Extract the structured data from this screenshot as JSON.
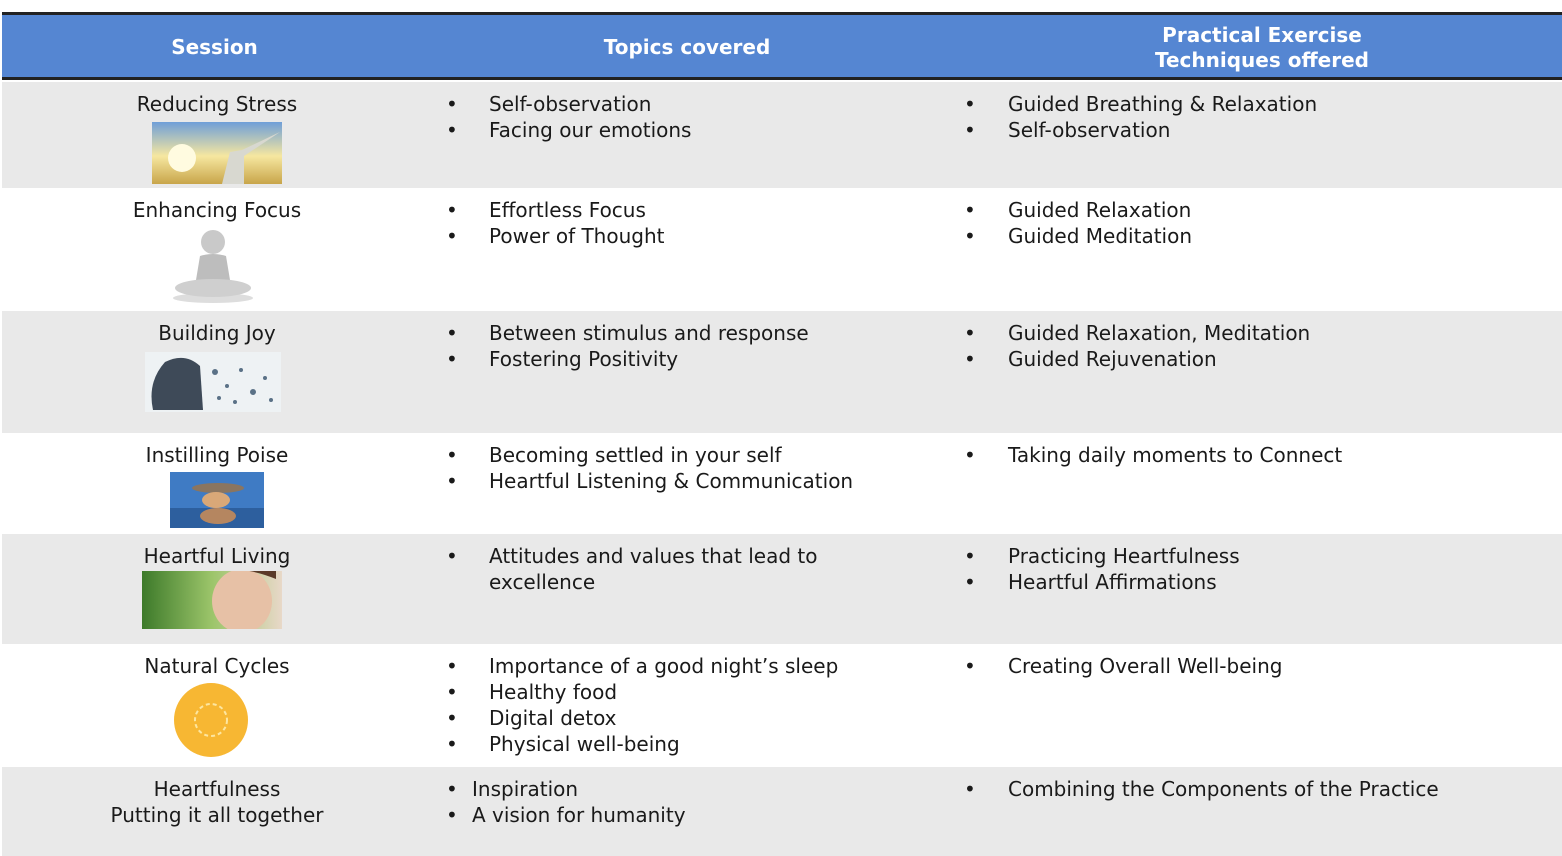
{
  "table": {
    "header": [
      [
        "Session"
      ],
      [
        "Topics covered"
      ],
      [
        "Practical Exercise",
        "Techniques offered"
      ]
    ],
    "rows": [
      {
        "session": [
          "Reducing Stress"
        ],
        "topics": [
          "Self-observation",
          "Facing our emotions"
        ],
        "exercises": [
          "Guided Breathing & Relaxation",
          "Self-observation"
        ]
      },
      {
        "session": [
          "Enhancing Focus"
        ],
        "topics": [
          "Effortless Focus",
          "Power of Thought"
        ],
        "exercises": [
          "Guided Relaxation",
          "Guided Meditation"
        ]
      },
      {
        "session": [
          "Building Joy"
        ],
        "topics": [
          "Between stimulus and response",
          "Fostering Positivity"
        ],
        "exercises": [
          "Guided Relaxation, Meditation",
          "Guided Rejuvenation"
        ]
      },
      {
        "session": [
          "Instilling Poise"
        ],
        "topics": [
          "Becoming settled in your self",
          "Heartful Listening & Communication"
        ],
        "exercises": [
          "Taking daily moments to Connect"
        ]
      },
      {
        "session": [
          "Heartful Living"
        ],
        "topics": [
          "Attitudes and values that lead to excellence"
        ],
        "exercises": [
          "Practicing Heartfulness",
          "Heartful Affirmations"
        ]
      },
      {
        "session": [
          "Natural Cycles"
        ],
        "topics": [
          "Importance of a good night’s sleep",
          "Healthy food",
          "Digital detox",
          "Physical well-being"
        ],
        "exercises": [
          "Creating Overall Well-being"
        ]
      },
      {
        "session": [
          "Heartfulness",
          "Putting it all together"
        ],
        "topics": [
          "Inspiration",
          "A vision for humanity"
        ],
        "exercises": [
          "Combining the Components of the Practice"
        ]
      }
    ]
  }
}
